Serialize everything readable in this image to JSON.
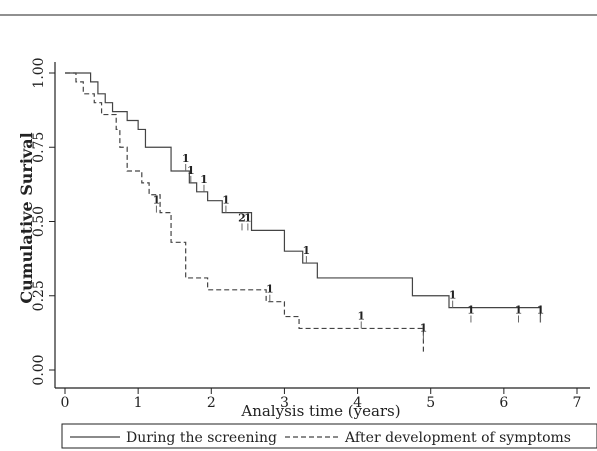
{
  "chart_data": {
    "type": "line",
    "step": true,
    "xlabel": "Analysis time (years)",
    "ylabel": "Cumulative Surival",
    "xlim": [
      0,
      7
    ],
    "ylim": [
      0,
      1
    ],
    "x_ticks": [
      "0",
      "1",
      "2",
      "3",
      "4",
      "5",
      "6",
      "7"
    ],
    "y_ticks": [
      "0.00",
      "0.25",
      "0.50",
      "0.75",
      "1.00"
    ],
    "grid": false,
    "legend_position": "bottom",
    "series": [
      {
        "name": "During the screening",
        "style": "solid",
        "color": "#444444",
        "x": [
          0,
          0.35,
          0.45,
          0.55,
          0.65,
          0.85,
          1.0,
          1.1,
          1.45,
          1.7,
          1.8,
          1.95,
          2.15,
          2.55,
          3.0,
          3.25,
          3.45,
          4.75,
          5.25,
          6.5
        ],
        "y": [
          1.0,
          0.97,
          0.93,
          0.9,
          0.87,
          0.84,
          0.81,
          0.75,
          0.67,
          0.63,
          0.6,
          0.57,
          0.53,
          0.47,
          0.4,
          0.36,
          0.31,
          0.25,
          0.21,
          0.16
        ],
        "censored": [
          {
            "x": 1.65,
            "y": 0.67,
            "n": "1"
          },
          {
            "x": 1.72,
            "y": 0.63,
            "n": "1"
          },
          {
            "x": 1.9,
            "y": 0.6,
            "n": "1"
          },
          {
            "x": 2.2,
            "y": 0.53,
            "n": "1"
          },
          {
            "x": 2.42,
            "y": 0.47,
            "n": "2"
          },
          {
            "x": 2.5,
            "y": 0.47,
            "n": "1"
          },
          {
            "x": 3.3,
            "y": 0.36,
            "n": "1"
          },
          {
            "x": 5.3,
            "y": 0.21,
            "n": "1"
          },
          {
            "x": 5.55,
            "y": 0.16,
            "n": "1"
          },
          {
            "x": 6.2,
            "y": 0.16,
            "n": "1"
          },
          {
            "x": 6.5,
            "y": 0.16,
            "n": "1"
          }
        ]
      },
      {
        "name": "After development of symptoms",
        "style": "dashed",
        "color": "#444444",
        "x": [
          0,
          0.15,
          0.25,
          0.4,
          0.5,
          0.7,
          0.75,
          0.85,
          1.05,
          1.15,
          1.3,
          1.45,
          1.65,
          1.95,
          2.55,
          2.75,
          3.0,
          3.2,
          4.85,
          4.9
        ],
        "y": [
          1.0,
          0.97,
          0.93,
          0.9,
          0.86,
          0.81,
          0.75,
          0.67,
          0.63,
          0.59,
          0.53,
          0.43,
          0.31,
          0.27,
          0.27,
          0.23,
          0.18,
          0.14,
          0.14,
          0.06
        ],
        "censored": [
          {
            "x": 1.25,
            "y": 0.53,
            "n": "1"
          },
          {
            "x": 2.8,
            "y": 0.23,
            "n": "1"
          },
          {
            "x": 4.05,
            "y": 0.14,
            "n": "1"
          },
          {
            "x": 4.9,
            "y": 0.1,
            "n": "1"
          }
        ]
      }
    ]
  }
}
